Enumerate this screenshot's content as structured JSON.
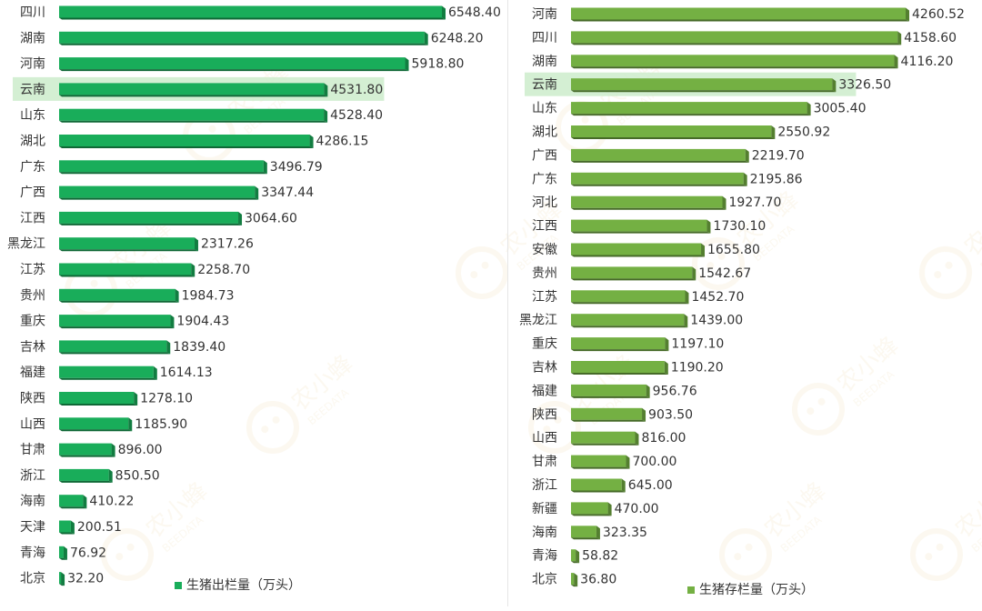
{
  "chart_data": [
    {
      "type": "bar",
      "orientation": "horizontal",
      "categories": [
        "四川",
        "湖南",
        "河南",
        "云南",
        "山东",
        "湖北",
        "广东",
        "广西",
        "江西",
        "黑龙江",
        "江苏",
        "贵州",
        "重庆",
        "吉林",
        "福建",
        "陕西",
        "山西",
        "甘肃",
        "浙江",
        "海南",
        "天津",
        "青海",
        "北京"
      ],
      "series": [
        {
          "name": "生猪出栏量（万头）",
          "values": [
            6548.4,
            6248.2,
            5918.8,
            4531.8,
            4528.4,
            4286.15,
            3496.79,
            3347.44,
            3064.6,
            2317.26,
            2258.7,
            1984.73,
            1904.43,
            1839.4,
            1614.13,
            1278.1,
            1185.9,
            896.0,
            850.5,
            410.22,
            200.51,
            76.92,
            32.2
          ],
          "labels": [
            "6548.40",
            "6248.20",
            "5918.80",
            "4531.80",
            "4528.40",
            "4286.15",
            "3496.79",
            "3347.44",
            "3064.60",
            "2317.26",
            "2258.70",
            "1984.73",
            "1904.43",
            "1839.40",
            "1614.13",
            "1278.10",
            "1185.90",
            "896.00",
            "850.50",
            "410.22",
            "200.51",
            "76.92",
            "32.20"
          ]
        }
      ],
      "highlight": "云南",
      "legend_label": "生猪出栏量（万头）",
      "legend_position": "bottom",
      "color": "#19ad5a",
      "xlim": [
        0,
        6700
      ]
    },
    {
      "type": "bar",
      "orientation": "horizontal",
      "categories": [
        "河南",
        "四川",
        "湖南",
        "云南",
        "山东",
        "湖北",
        "广西",
        "广东",
        "河北",
        "江西",
        "安徽",
        "贵州",
        "江苏",
        "黑龙江",
        "重庆",
        "吉林",
        "福建",
        "陕西",
        "山西",
        "甘肃",
        "浙江",
        "新疆",
        "海南",
        "青海",
        "北京"
      ],
      "series": [
        {
          "name": "生猪存栏量（万头）",
          "values": [
            4260.52,
            4158.6,
            4116.2,
            3326.5,
            3005.4,
            2550.92,
            2219.7,
            2195.86,
            1927.7,
            1730.1,
            1655.8,
            1542.67,
            1452.7,
            1439.0,
            1197.1,
            1190.2,
            956.76,
            903.5,
            816.0,
            700.0,
            645.0,
            470.0,
            323.35,
            58.82,
            36.8
          ],
          "labels": [
            "4260.52",
            "4158.60",
            "4116.20",
            "3326.50",
            "3005.40",
            "2550.92",
            "2219.70",
            "2195.86",
            "1927.70",
            "1730.10",
            "1655.80",
            "1542.67",
            "1452.70",
            "1439.00",
            "1197.10",
            "1190.20",
            "956.76",
            "903.50",
            "816.00",
            "700.00",
            "645.00",
            "470.00",
            "323.35",
            "58.82",
            "36.80"
          ]
        }
      ],
      "highlight": "云南",
      "legend_label": "生猪存栏量（万头）",
      "legend_position": "bottom",
      "color": "#74b043",
      "xlim": [
        0,
        4400
      ]
    }
  ],
  "watermark": {
    "brand": "农小蜂",
    "brand_en": "BEEDATA"
  }
}
